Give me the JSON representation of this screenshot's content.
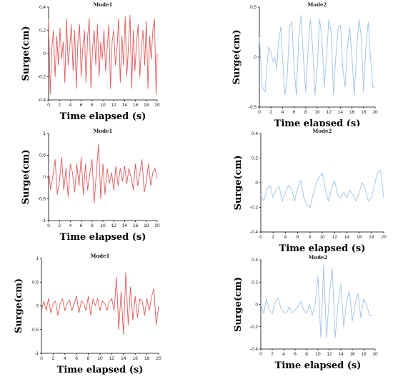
{
  "chart_data": [
    {
      "type": "line",
      "title": "Mode1",
      "xlabel": "Time elapsed (s)",
      "ylabel": "Surge(cm)",
      "xlim": [
        0,
        20
      ],
      "ylim": [
        -0.4,
        0.4
      ],
      "xticks": [
        "0",
        "2",
        "4",
        "6",
        "8",
        "10",
        "12",
        "14",
        "16",
        "18",
        "20"
      ],
      "yticks": [
        "-0.4",
        "-0.2",
        "0",
        "0.2",
        "0.4"
      ],
      "color": "#e05a5a",
      "series": [
        {
          "x": [
            0,
            0.3,
            0.6,
            0.9,
            1.2,
            1.5,
            1.8,
            2.1,
            2.4,
            2.7,
            3.0,
            3.3,
            3.6,
            3.9,
            4.2,
            4.5,
            4.8,
            5.1,
            5.4,
            5.7,
            6.0,
            6.3,
            6.6,
            6.9,
            7.2,
            7.5,
            7.8,
            8.1,
            8.4,
            8.7,
            9.0,
            9.3,
            9.6,
            9.9,
            10.2,
            10.5,
            10.8,
            11.1,
            11.4,
            11.7,
            12.0,
            12.3,
            12.6,
            12.9,
            13.2,
            13.5,
            13.8,
            14.1,
            14.4,
            14.7,
            15.0,
            15.3,
            15.6,
            15.9,
            16.2,
            16.5,
            16.8,
            17.1,
            17.4,
            17.7,
            18.0,
            18.3,
            18.6,
            18.9,
            19.2,
            19.5,
            19.8,
            20.0
          ],
          "values": [
            0.3,
            -0.35,
            0.05,
            0.2,
            -0.2,
            0.15,
            -0.1,
            0.22,
            -0.05,
            0.1,
            -0.25,
            0.3,
            -0.1,
            0.05,
            0.25,
            -0.15,
            0.2,
            -0.3,
            0.1,
            0.25,
            -0.2,
            0.05,
            0.2,
            -0.25,
            0.15,
            0.3,
            -0.3,
            0.05,
            0.2,
            -0.1,
            0.25,
            -0.2,
            0.1,
            -0.05,
            0.2,
            -0.15,
            0.05,
            0.25,
            -0.3,
            0.1,
            0.2,
            -0.1,
            0.05,
            0.3,
            -0.25,
            0.15,
            -0.1,
            0.32,
            -0.2,
            0.05,
            0.33,
            -0.3,
            0.2,
            -0.15,
            0.1,
            0.25,
            -0.2,
            0.05,
            0.2,
            -0.1,
            0.28,
            -0.3,
            0.15,
            -0.05,
            0.2,
            0.3,
            -0.35,
            0.0
          ]
        }
      ]
    },
    {
      "type": "line",
      "title": "Mode2",
      "xlabel": "Time elapsed (s)",
      "ylabel": "Surge(cm)",
      "xlim": [
        0,
        20
      ],
      "ylim": [
        -0.5,
        0.5
      ],
      "xticks": [
        "0",
        "2",
        "4",
        "6",
        "8",
        "10",
        "12",
        "14",
        "16",
        "18",
        "20"
      ],
      "yticks": [
        "-0.5",
        "0",
        "0.5"
      ],
      "color": "#9dc3e6",
      "series": [
        {
          "x": [
            0,
            0.5,
            1.0,
            1.3,
            1.6,
            2.0,
            2.4,
            2.7,
            3.0,
            3.3,
            3.7,
            4.0,
            4.4,
            4.8,
            5.2,
            5.6,
            6.0,
            6.4,
            6.8,
            7.2,
            7.6,
            8.0,
            8.4,
            8.8,
            9.2,
            9.6,
            10.0,
            10.4,
            10.8,
            11.2,
            11.6,
            12.0,
            12.4,
            12.8,
            13.2,
            13.6,
            14.0,
            14.4,
            14.8,
            15.2,
            15.6,
            16.0,
            16.4,
            16.8,
            17.2,
            17.6,
            18.0,
            18.4,
            18.8,
            19.2,
            19.6,
            20.0
          ],
          "values": [
            0.2,
            -0.3,
            -0.35,
            -0.1,
            0.1,
            0.05,
            -0.05,
            0.0,
            -0.12,
            0.15,
            0.3,
            0.0,
            -0.38,
            -0.2,
            0.3,
            0.35,
            -0.1,
            -0.38,
            0.2,
            0.42,
            0.0,
            -0.35,
            0.05,
            0.38,
            0.1,
            -0.38,
            -0.1,
            0.38,
            0.2,
            -0.3,
            0.0,
            0.38,
            0.25,
            -0.38,
            0.0,
            0.3,
            0.32,
            -0.1,
            -0.3,
            0.1,
            0.3,
            0.0,
            -0.38,
            0.05,
            0.38,
            0.2,
            -0.35,
            0.1,
            0.35,
            0.0,
            -0.3,
            -0.3
          ]
        }
      ]
    },
    {
      "type": "line",
      "title": "Mode1",
      "xlabel": "Time elapsed (s)",
      "ylabel": "Surge(cm)",
      "xlim": [
        0,
        20
      ],
      "ylim": [
        -1,
        1
      ],
      "xticks": [
        "0",
        "2",
        "4",
        "6",
        "8",
        "10",
        "12",
        "14",
        "16",
        "18",
        "20"
      ],
      "yticks": [
        "-1",
        "-0.5",
        "0",
        "0.5",
        "1"
      ],
      "color": "#e05a5a",
      "series": [
        {
          "x": [
            0,
            0.4,
            0.8,
            1.2,
            1.6,
            2.0,
            2.4,
            2.8,
            3.2,
            3.6,
            4.0,
            4.4,
            4.8,
            5.2,
            5.6,
            6.0,
            6.4,
            6.8,
            7.2,
            7.6,
            8.0,
            8.4,
            8.8,
            9.2,
            9.6,
            10.0,
            10.4,
            10.8,
            11.2,
            11.6,
            12.0,
            12.4,
            12.8,
            13.2,
            13.6,
            14.0,
            14.4,
            14.8,
            15.2,
            15.6,
            16.0,
            16.4,
            16.8,
            17.2,
            17.6,
            18.0,
            18.4,
            18.8,
            19.2,
            19.6,
            20.0
          ],
          "values": [
            0.1,
            -0.3,
            0.05,
            0.4,
            -0.4,
            -0.1,
            0.45,
            -0.3,
            0.2,
            -0.45,
            0.3,
            0.1,
            -0.35,
            0.3,
            -0.2,
            0.45,
            -0.4,
            0.3,
            -0.3,
            0.1,
            0.4,
            -0.6,
            0.1,
            0.75,
            -0.5,
            0.3,
            -0.4,
            0.2,
            -0.15,
            0.1,
            -0.3,
            0.25,
            -0.2,
            0.2,
            -0.1,
            0.25,
            -0.15,
            0.2,
            0.0,
            -0.3,
            0.3,
            -0.2,
            0.1,
            0.4,
            -0.35,
            -0.1,
            0.3,
            -0.2,
            0.1,
            0.2,
            -0.05
          ]
        }
      ]
    },
    {
      "type": "line",
      "title": "Mode2",
      "xlabel": "Time elapsed (s)",
      "ylabel": "Surge(cm)",
      "xlim": [
        0,
        20
      ],
      "ylim": [
        -0.4,
        0.4
      ],
      "xticks": [
        "0",
        "2",
        "4",
        "6",
        "8",
        "10",
        "12",
        "14",
        "16",
        "18",
        "20"
      ],
      "yticks": [
        "-0.4",
        "-0.2",
        "0",
        "0.2",
        "0.4"
      ],
      "color": "#9dc3e6",
      "series": [
        {
          "x": [
            0,
            0.5,
            1.0,
            1.5,
            2.0,
            2.5,
            3.0,
            3.5,
            4.0,
            4.5,
            5.0,
            5.5,
            6.0,
            6.5,
            7.0,
            7.5,
            8.0,
            8.5,
            9.0,
            9.5,
            10.0,
            10.5,
            11.0,
            11.5,
            12.0,
            12.5,
            13.0,
            13.5,
            14.0,
            14.5,
            15.0,
            15.5,
            16.0,
            16.5,
            17.0,
            17.5,
            18.0,
            18.5,
            19.0,
            19.5,
            20.0
          ],
          "values": [
            -0.1,
            -0.15,
            -0.05,
            -0.02,
            -0.12,
            -0.05,
            -0.03,
            -0.15,
            -0.08,
            -0.02,
            -0.05,
            -0.15,
            -0.04,
            0.02,
            -0.12,
            -0.18,
            -0.2,
            -0.1,
            0.0,
            0.05,
            0.08,
            -0.05,
            -0.15,
            -0.05,
            0.02,
            -0.1,
            -0.12,
            -0.08,
            -0.12,
            -0.06,
            -0.1,
            -0.15,
            -0.08,
            0.0,
            -0.05,
            -0.15,
            -0.12,
            -0.02,
            0.08,
            0.1,
            -0.12
          ]
        }
      ]
    },
    {
      "type": "line",
      "title": "Mode1",
      "xlabel": "Time elapsed (s)",
      "ylabel": "Surge(cm)",
      "xlim": [
        0,
        20
      ],
      "ylim": [
        -1,
        1
      ],
      "xticks": [
        "0",
        "2",
        "4",
        "6",
        "8",
        "10",
        "12",
        "14",
        "16",
        "18",
        "20"
      ],
      "yticks": [
        "-1",
        "-0.5",
        "0",
        "0.5",
        "1"
      ],
      "color": "#e05a5a",
      "series": [
        {
          "x": [
            0,
            0.4,
            0.8,
            1.2,
            1.6,
            2.0,
            2.4,
            2.8,
            3.2,
            3.6,
            4.0,
            4.4,
            4.8,
            5.2,
            5.6,
            6.0,
            6.4,
            6.8,
            7.2,
            7.6,
            8.0,
            8.4,
            8.8,
            9.2,
            9.6,
            10.0,
            10.4,
            10.8,
            11.2,
            11.6,
            12.0,
            12.4,
            12.8,
            13.2,
            13.6,
            14.0,
            14.4,
            14.8,
            15.2,
            15.6,
            16.0,
            16.4,
            16.8,
            17.2,
            17.6,
            18.0,
            18.4,
            18.8,
            19.2,
            19.6,
            20.0
          ],
          "values": [
            -0.1,
            0.1,
            -0.1,
            0.15,
            -0.15,
            0.05,
            0.1,
            -0.2,
            0.05,
            0.15,
            -0.1,
            0.05,
            0.12,
            -0.1,
            0.05,
            0.2,
            -0.15,
            0.1,
            0.05,
            -0.1,
            0.2,
            -0.2,
            0.15,
            0.0,
            0.15,
            -0.1,
            0.1,
            0.05,
            -0.1,
            0.1,
            0.15,
            -0.1,
            0.6,
            -0.5,
            0.3,
            -0.6,
            0.7,
            -0.4,
            0.4,
            -0.3,
            0.2,
            -0.25,
            0.15,
            0.1,
            -0.2,
            0.15,
            -0.1,
            0.2,
            0.35,
            -0.4,
            0.0
          ]
        }
      ]
    },
    {
      "type": "line",
      "title": "Mode2",
      "xlabel": "Time elapsed (s)",
      "ylabel": "Surge(cm)",
      "xlim": [
        0,
        20
      ],
      "ylim": [
        -0.4,
        0.4
      ],
      "xticks": [
        "0",
        "2",
        "4",
        "6",
        "8",
        "10",
        "12",
        "14",
        "16",
        "18",
        "20"
      ],
      "yticks": [
        "-0.4",
        "-0.2",
        "0",
        "0.2",
        "0.4"
      ],
      "color": "#9dc3e6",
      "series": [
        {
          "x": [
            0,
            0.5,
            1.0,
            1.5,
            2.0,
            2.5,
            3.0,
            3.5,
            4.0,
            4.5,
            5.0,
            5.5,
            6.0,
            6.5,
            7.0,
            7.5,
            8.0,
            8.5,
            9.0,
            9.5,
            10.0,
            10.5,
            11.0,
            11.5,
            12.0,
            12.5,
            13.0,
            13.5,
            14.0,
            14.5,
            15.0,
            15.5,
            16.0,
            16.5,
            17.0,
            17.5,
            18.0,
            18.5,
            19.0,
            19.5
          ],
          "values": [
            0.0,
            -0.08,
            0.05,
            -0.05,
            -0.08,
            0.02,
            0.06,
            -0.03,
            -0.07,
            -0.08,
            -0.02,
            -0.08,
            -0.05,
            -0.02,
            0.03,
            -0.05,
            -0.08,
            0.0,
            -0.1,
            0.0,
            0.25,
            -0.3,
            0.35,
            -0.3,
            0.1,
            0.32,
            -0.3,
            0.0,
            0.18,
            -0.2,
            0.02,
            0.12,
            -0.15,
            0.0,
            0.1,
            -0.12,
            0.05,
            0.0,
            -0.1,
            -0.1
          ]
        }
      ]
    }
  ]
}
